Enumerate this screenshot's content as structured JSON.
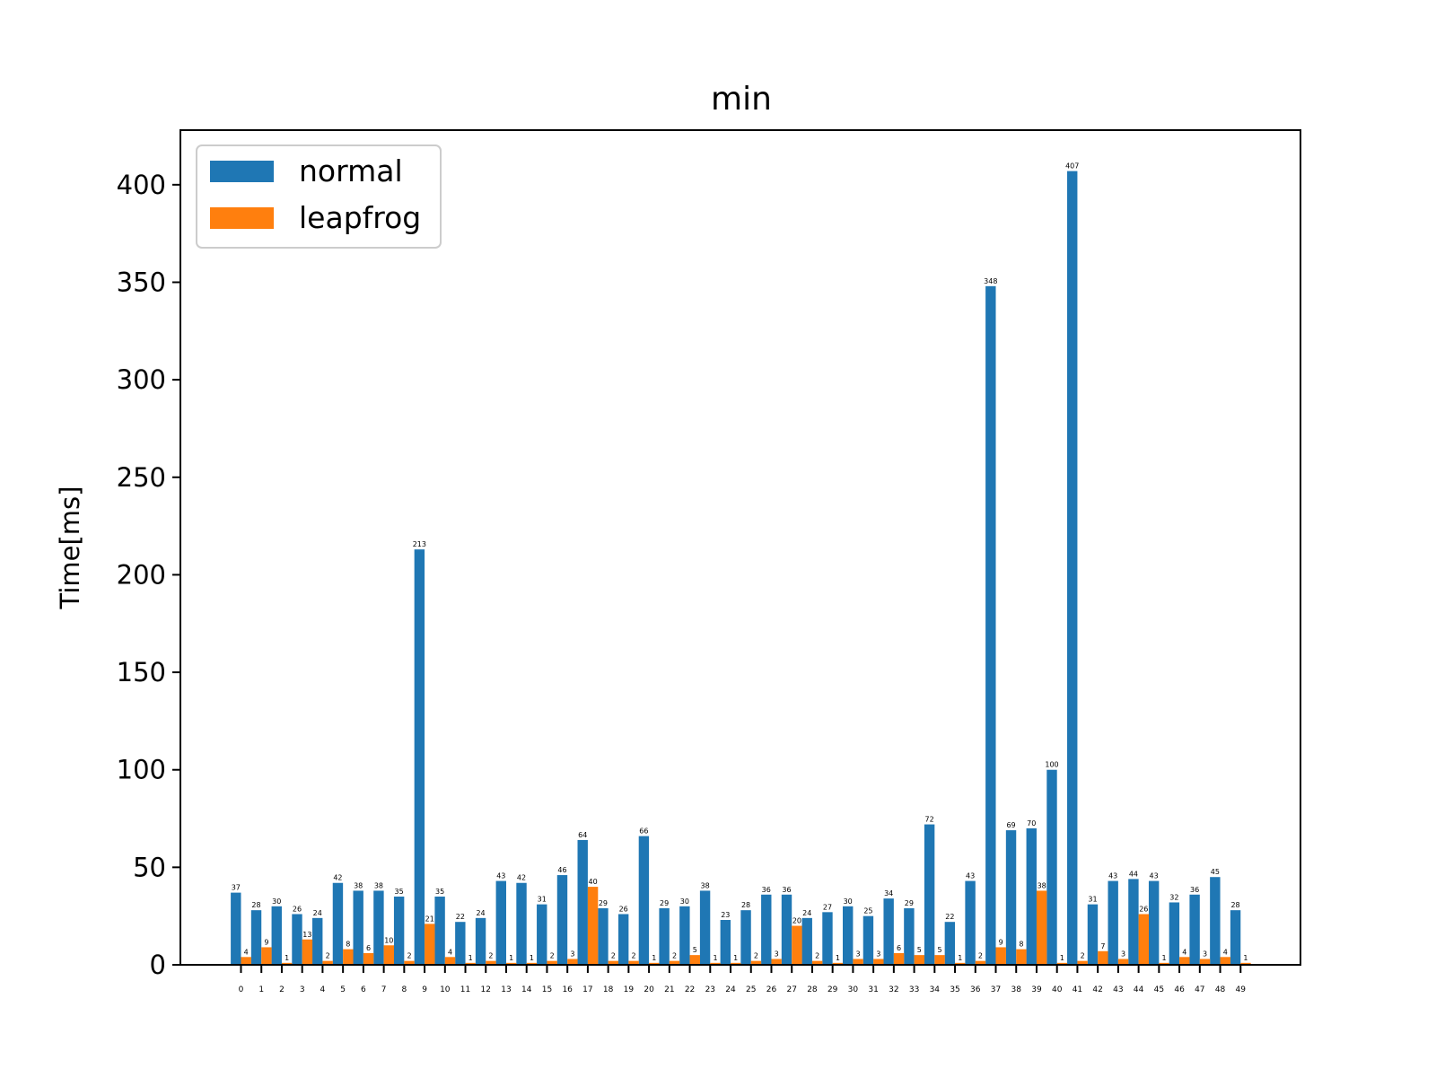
{
  "chart_data": {
    "type": "bar",
    "title": "min",
    "xlabel": "",
    "ylabel": "Time[ms]",
    "ylim": [
      0,
      428
    ],
    "yticks": [
      0,
      50,
      100,
      150,
      200,
      250,
      300,
      350,
      400
    ],
    "categories": [
      "0",
      "1",
      "2",
      "3",
      "4",
      "5",
      "6",
      "7",
      "8",
      "9",
      "10",
      "11",
      "12",
      "13",
      "14",
      "15",
      "16",
      "17",
      "18",
      "19",
      "20",
      "21",
      "22",
      "23",
      "24",
      "25",
      "26",
      "27",
      "28",
      "29",
      "30",
      "31",
      "32",
      "33",
      "34",
      "35",
      "36",
      "37",
      "38",
      "39",
      "40",
      "41",
      "42",
      "43",
      "44",
      "45",
      "46",
      "47",
      "48",
      "49"
    ],
    "series": [
      {
        "name": "normal",
        "color": "#1f77b4",
        "values": [
          37,
          28,
          30,
          26,
          24,
          42,
          38,
          38,
          35,
          213,
          35,
          22,
          24,
          43,
          42,
          31,
          46,
          64,
          29,
          26,
          66,
          29,
          30,
          38,
          23,
          28,
          36,
          36,
          24,
          27,
          30,
          25,
          34,
          29,
          72,
          22,
          43,
          348,
          69,
          70,
          100,
          407,
          31,
          43,
          44,
          43,
          32,
          36,
          45,
          28
        ]
      },
      {
        "name": "leapfrog",
        "color": "#ff7f0e",
        "values": [
          4,
          9,
          1,
          13,
          2,
          8,
          6,
          10,
          2,
          21,
          4,
          1,
          2,
          1,
          1,
          2,
          3,
          40,
          2,
          2,
          1,
          2,
          5,
          1,
          1,
          2,
          3,
          20,
          2,
          1,
          3,
          3,
          6,
          5,
          5,
          1,
          2,
          9,
          8,
          38,
          1,
          2,
          7,
          3,
          26,
          1,
          4,
          3,
          4,
          1
        ]
      }
    ],
    "legend": "upper-left",
    "grid": false
  }
}
